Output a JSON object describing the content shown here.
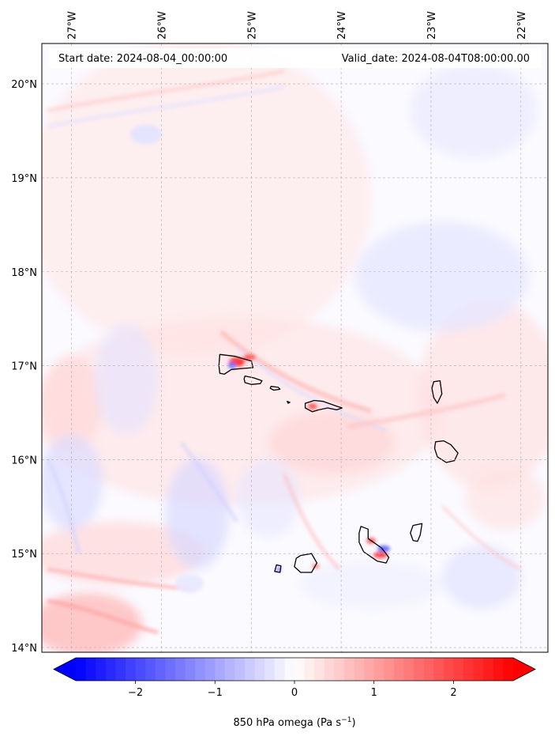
{
  "map": {
    "start_date_text": "Start date: 2024-08-04_00:00:00",
    "valid_date_text": "Valid_date: 2024-08-04T08:00:00.00",
    "extent": {
      "lon_min": -27.33,
      "lon_max": -21.7,
      "lat_min": 13.95,
      "lat_max": 20.43
    },
    "lon_ticks": [
      {
        "value": -27,
        "label": "27°W"
      },
      {
        "value": -26,
        "label": "26°W"
      },
      {
        "value": -25,
        "label": "25°W"
      },
      {
        "value": -24,
        "label": "24°W"
      },
      {
        "value": -23,
        "label": "23°W"
      },
      {
        "value": -22,
        "label": "22°W"
      }
    ],
    "lat_ticks": [
      {
        "value": 20,
        "label": "20°N"
      },
      {
        "value": 19,
        "label": "19°N"
      },
      {
        "value": 18,
        "label": "18°N"
      },
      {
        "value": 17,
        "label": "17°N"
      },
      {
        "value": 16,
        "label": "16°N"
      },
      {
        "value": 15,
        "label": "15°N"
      },
      {
        "value": 14,
        "label": "14°N"
      }
    ],
    "gridlines": true,
    "islands": [
      {
        "name": "santo-antao",
        "points": [
          [
            -25.35,
            17.12
          ],
          [
            -25.18,
            17.1
          ],
          [
            -25.0,
            17.05
          ],
          [
            -24.98,
            16.98
          ],
          [
            -25.1,
            16.97
          ],
          [
            -25.22,
            16.96
          ],
          [
            -25.3,
            16.91
          ],
          [
            -25.35,
            16.92
          ],
          [
            -25.36,
            17.0
          ]
        ]
      },
      {
        "name": "sao-vicente",
        "points": [
          [
            -25.07,
            16.89
          ],
          [
            -24.97,
            16.87
          ],
          [
            -24.88,
            16.84
          ],
          [
            -24.9,
            16.81
          ],
          [
            -25.0,
            16.8
          ],
          [
            -25.07,
            16.82
          ],
          [
            -25.08,
            16.86
          ]
        ]
      },
      {
        "name": "santa-luzia",
        "points": [
          [
            -24.78,
            16.78
          ],
          [
            -24.7,
            16.77
          ],
          [
            -24.68,
            16.75
          ],
          [
            -24.75,
            16.74
          ],
          [
            -24.79,
            16.76
          ]
        ]
      },
      {
        "name": "razo",
        "points": [
          [
            -24.6,
            16.62
          ],
          [
            -24.57,
            16.61
          ],
          [
            -24.59,
            16.6
          ]
        ]
      },
      {
        "name": "sao-nicolau",
        "points": [
          [
            -24.4,
            16.6
          ],
          [
            -24.3,
            16.63
          ],
          [
            -24.2,
            16.62
          ],
          [
            -24.05,
            16.57
          ],
          [
            -23.99,
            16.55
          ],
          [
            -24.05,
            16.53
          ],
          [
            -24.15,
            16.55
          ],
          [
            -24.25,
            16.53
          ],
          [
            -24.32,
            16.51
          ],
          [
            -24.4,
            16.55
          ]
        ]
      },
      {
        "name": "sal",
        "points": [
          [
            -22.97,
            16.83
          ],
          [
            -22.9,
            16.84
          ],
          [
            -22.88,
            16.7
          ],
          [
            -22.93,
            16.6
          ],
          [
            -22.97,
            16.66
          ],
          [
            -22.99,
            16.76
          ]
        ]
      },
      {
        "name": "boa-vista",
        "points": [
          [
            -22.95,
            16.19
          ],
          [
            -22.86,
            16.2
          ],
          [
            -22.78,
            16.16
          ],
          [
            -22.7,
            16.07
          ],
          [
            -22.74,
            15.99
          ],
          [
            -22.83,
            15.97
          ],
          [
            -22.93,
            16.03
          ],
          [
            -22.96,
            16.12
          ]
        ]
      },
      {
        "name": "maio",
        "points": [
          [
            -23.2,
            15.3
          ],
          [
            -23.1,
            15.32
          ],
          [
            -23.12,
            15.2
          ],
          [
            -23.15,
            15.13
          ],
          [
            -23.2,
            15.14
          ],
          [
            -23.23,
            15.22
          ]
        ]
      },
      {
        "name": "santiago",
        "points": [
          [
            -23.78,
            15.29
          ],
          [
            -23.7,
            15.26
          ],
          [
            -23.7,
            15.16
          ],
          [
            -23.55,
            15.06
          ],
          [
            -23.47,
            14.96
          ],
          [
            -23.5,
            14.9
          ],
          [
            -23.6,
            14.92
          ],
          [
            -23.75,
            15.02
          ],
          [
            -23.8,
            15.12
          ],
          [
            -23.8,
            15.22
          ]
        ]
      },
      {
        "name": "fogo",
        "points": [
          [
            -24.45,
            14.98
          ],
          [
            -24.33,
            15.0
          ],
          [
            -24.27,
            14.9
          ],
          [
            -24.33,
            14.8
          ],
          [
            -24.45,
            14.8
          ],
          [
            -24.52,
            14.86
          ],
          [
            -24.5,
            14.95
          ]
        ]
      },
      {
        "name": "brava",
        "points": [
          [
            -24.72,
            14.88
          ],
          [
            -24.67,
            14.87
          ],
          [
            -24.68,
            14.8
          ],
          [
            -24.74,
            14.81
          ]
        ]
      }
    ]
  },
  "colorbar": {
    "label_prefix": "850 hPa omega (Pa s",
    "label_exp": "−1",
    "label_suffix": ")",
    "vmin": -2.75,
    "vmax": 2.75,
    "ticks": [
      {
        "value": -2,
        "label": "−2"
      },
      {
        "value": -1,
        "label": "−1"
      },
      {
        "value": 0,
        "label": "0"
      },
      {
        "value": 1,
        "label": "1"
      },
      {
        "value": 2,
        "label": "2"
      }
    ],
    "colormap": "bwr",
    "extend": "both"
  }
}
